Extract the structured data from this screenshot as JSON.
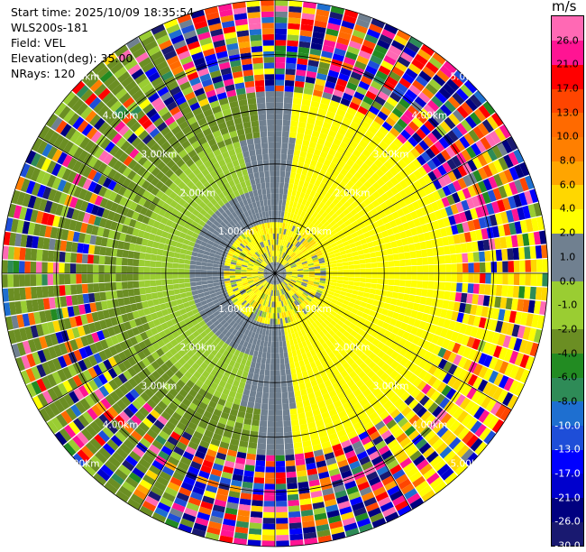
{
  "info": {
    "start_time": "Start time: 2025/10/09 18:35:54",
    "instrument": "WLS200s-181",
    "field": "Field: VEL",
    "elevation": "Elevation(deg): 35.00",
    "nrays": "NRays: 120"
  },
  "chart_data": {
    "type": "ppi-polar",
    "field": "VEL",
    "units": "m/s",
    "n_rays": 120,
    "max_range_km": 5.0,
    "range_ring_labels": [
      "1.00km",
      "2.00km",
      "3.00km",
      "4.00km",
      "5.00km"
    ],
    "range_rings_km": [
      1,
      2,
      3,
      4,
      5
    ],
    "inner_yellow_radius_km": 2.55,
    "green_zone_start_km": 2.9,
    "noise_start_km": 3.3,
    "colorbar": {
      "unit": "m/s",
      "levels": [
        -30,
        -26,
        -21,
        -17,
        -13,
        -10,
        -8,
        -6,
        -4,
        -2,
        -1,
        0,
        1,
        2,
        4,
        6,
        8,
        10,
        13,
        17,
        21,
        26,
        30
      ],
      "labels": [
        "-30.0",
        "-26.0",
        "-21.0",
        "-17.0",
        "-13.0",
        "-10.0",
        "-8.0",
        "-6.0",
        "-4.0",
        "-2.0",
        "-1.0",
        "0.0",
        "1.0",
        "2.0",
        "4.0",
        "6.0",
        "8.0",
        "10.0",
        "13.0",
        "17.0",
        "21.0",
        "26.0"
      ],
      "colors": [
        "#191970",
        "#000080",
        "#0000cd",
        "#0000ff",
        "#1e4ed8",
        "#1e6fd0",
        "#2e8b57",
        "#228b22",
        "#6b8e23",
        "#9acd32",
        "#9acd32",
        "#708090",
        "#708090",
        "#ffff00",
        "#ffd700",
        "#ffa500",
        "#ff7f00",
        "#ff6a00",
        "#ff4500",
        "#ff0000",
        "#ff1493",
        "#ff69b4"
      ]
    }
  }
}
